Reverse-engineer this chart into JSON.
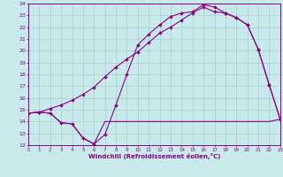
{
  "xlabel": "Windchill (Refroidissement éolien,°C)",
  "bg_color": "#c8eaea",
  "line_color": "#880088",
  "grid_color": "#aacccc",
  "xlim": [
    0,
    23
  ],
  "ylim": [
    12,
    24
  ],
  "ytick_vals": [
    12,
    13,
    14,
    15,
    16,
    17,
    18,
    19,
    20,
    21,
    22,
    23,
    24
  ],
  "xtick_vals": [
    0,
    1,
    2,
    3,
    4,
    5,
    6,
    7,
    8,
    9,
    10,
    11,
    12,
    13,
    14,
    15,
    16,
    17,
    18,
    19,
    20,
    21,
    22,
    23
  ],
  "line_flat_x": [
    0,
    1,
    2,
    3,
    4,
    5,
    6,
    7,
    8,
    9,
    10,
    11,
    12,
    13,
    14,
    15,
    16,
    17,
    18,
    19,
    20,
    21,
    22,
    23
  ],
  "line_flat_y": [
    14.7,
    14.8,
    14.7,
    13.9,
    13.8,
    12.6,
    12.1,
    14.0,
    14.0,
    14.0,
    14.0,
    14.0,
    14.0,
    14.0,
    14.0,
    14.0,
    14.0,
    14.0,
    14.0,
    14.0,
    14.0,
    14.0,
    14.0,
    14.2
  ],
  "line_mid_x": [
    0,
    1,
    2,
    3,
    4,
    5,
    6,
    7,
    8,
    9,
    10,
    11,
    12,
    13,
    14,
    15,
    16,
    17,
    18,
    19,
    20,
    21,
    22,
    23
  ],
  "line_mid_y": [
    14.7,
    14.8,
    15.1,
    15.4,
    15.8,
    16.3,
    16.9,
    17.8,
    18.6,
    19.3,
    19.9,
    20.7,
    21.5,
    22.0,
    22.6,
    23.2,
    23.7,
    23.3,
    23.2,
    22.8,
    22.2,
    20.1,
    17.1,
    14.2
  ],
  "line_top_x": [
    0,
    1,
    2,
    3,
    4,
    5,
    6,
    7,
    8,
    9,
    10,
    11,
    12,
    13,
    14,
    15,
    16,
    17,
    18,
    19,
    20,
    21,
    22,
    23
  ],
  "line_top_y": [
    14.7,
    14.8,
    14.7,
    13.9,
    13.8,
    12.6,
    12.1,
    12.9,
    15.4,
    18.0,
    20.5,
    21.4,
    22.2,
    22.9,
    23.2,
    23.3,
    23.9,
    23.7,
    23.2,
    22.8,
    22.2,
    20.1,
    17.1,
    14.2
  ]
}
